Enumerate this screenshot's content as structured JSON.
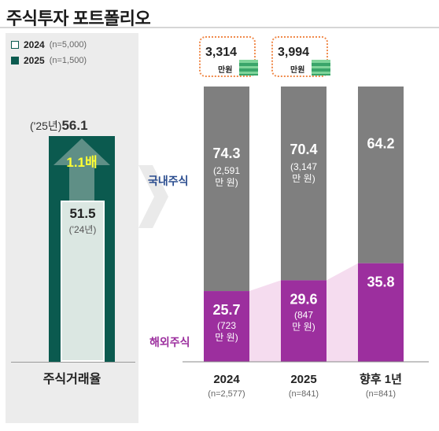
{
  "title": "주식투자 포트폴리오",
  "legend": [
    {
      "label": "2024",
      "n": "(n=5,000)",
      "fill": "#ffffff"
    },
    {
      "label": "2025",
      "n": "(n=1,500)",
      "fill": "#0b5a4f"
    }
  ],
  "left_chart": {
    "xlabel": "주식거래율",
    "v2025_label": "('25년)",
    "v2025": "56.1",
    "v2024": "51.5",
    "v2024_label": "('24년)",
    "ratio": "1.1배",
    "colors": {
      "dark": "#0b5a4f",
      "light": "#d8e6e0"
    }
  },
  "totals": [
    {
      "value": "3,314",
      "unit": "만원"
    },
    {
      "value": "3,994",
      "unit": "만원"
    }
  ],
  "series_labels": {
    "domestic": "국내주식",
    "foreign": "해외주식"
  },
  "chart_data": {
    "type": "bar",
    "stacked": true,
    "categories": [
      "2024",
      "2025",
      "향후 1년"
    ],
    "category_n": [
      "(n=2,577)",
      "(n=841)",
      "(n=841)"
    ],
    "series": [
      {
        "name": "해외주식",
        "values": [
          25.7,
          29.6,
          35.8
        ],
        "amounts": [
          "(723\n만 원)",
          "(847\n만 원)",
          ""
        ],
        "color": "#9c2f9e"
      },
      {
        "name": "국내주식",
        "values": [
          74.3,
          70.4,
          64.2
        ],
        "amounts": [
          "(2,591\n만 원)",
          "(3,147\n만 원)",
          ""
        ],
        "color": "#7f7f7f"
      }
    ],
    "ylim": [
      0,
      100
    ]
  }
}
